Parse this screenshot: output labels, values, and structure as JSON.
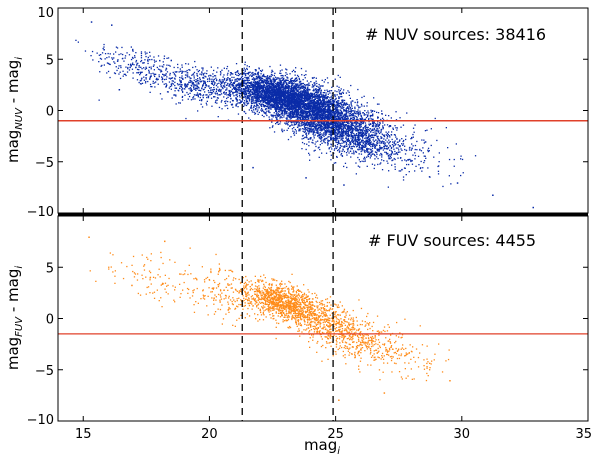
{
  "chart_data": [
    {
      "type": "scatter",
      "panel": "top",
      "annotation": "# NUV sources: 38416",
      "ylabel_main": "mag",
      "ylabel_sub": "NUV",
      "ylabel_mid": " - mag",
      "ylabel_sub2": "i",
      "xlim": [
        14,
        35
      ],
      "ylim": [
        -10,
        10
      ],
      "yticks": [
        -10,
        -5,
        0,
        5,
        10
      ],
      "ytick_labels": [
        "−10",
        "−5",
        "0",
        "5",
        "10"
      ],
      "hline_y": -1.0,
      "vlines_x": [
        21.3,
        24.9
      ],
      "point_color": "#0a2ca8",
      "hline_color": "#e0402a",
      "cloud": {
        "centers": [
          [
            17.0,
            4.5
          ],
          [
            19.5,
            2.5
          ],
          [
            22.3,
            1.8
          ],
          [
            23.5,
            0.8
          ],
          [
            24.5,
            -0.5
          ],
          [
            25.5,
            -1.8
          ],
          [
            26.5,
            -2.8
          ],
          [
            28.0,
            -4.0
          ]
        ],
        "point_counts": [
          200,
          500,
          1800,
          1800,
          1500,
          800,
          400,
          120
        ],
        "sx": [
          0.9,
          0.9,
          0.8,
          0.8,
          0.8,
          0.8,
          0.8,
          1.0
        ],
        "sy": [
          1.0,
          0.9,
          0.9,
          1.1,
          1.3,
          1.3,
          1.2,
          1.2
        ],
        "outliers": [
          [
            15.3,
            8.7
          ],
          [
            16.1,
            8.4
          ],
          [
            15.8,
            6.0
          ],
          [
            16.4,
            2.1
          ],
          [
            21.7,
            -5.5
          ],
          [
            23.8,
            -6.5
          ],
          [
            29.8,
            -7.0
          ],
          [
            31.2,
            -8.2
          ],
          [
            32.8,
            -9.4
          ],
          [
            25.3,
            -7.2
          ]
        ]
      }
    },
    {
      "type": "scatter",
      "panel": "bottom",
      "annotation": "# FUV sources: 4455",
      "ylabel_main": "mag",
      "ylabel_sub": "FUV",
      "ylabel_mid": " - mag",
      "ylabel_sub2": "i",
      "xlabel_main": "mag",
      "xlabel_sub": "i",
      "xlim": [
        14,
        35
      ],
      "ylim": [
        -10,
        10
      ],
      "xticks": [
        15,
        20,
        25,
        30,
        35
      ],
      "xtick_labels": [
        "15",
        "20",
        "25",
        "30",
        "35"
      ],
      "yticks": [
        -10,
        -5,
        0,
        5
      ],
      "ytick_labels": [
        "−10",
        "−5",
        "0",
        "5"
      ],
      "hline_y": -1.5,
      "vlines_x": [
        21.3,
        24.9
      ],
      "point_color": "#ff8c1a",
      "hline_color": "#e0402a",
      "cloud": {
        "centers": [
          [
            17.5,
            4.0
          ],
          [
            20.5,
            2.5
          ],
          [
            22.8,
            1.8
          ],
          [
            24.2,
            0.2
          ],
          [
            25.8,
            -2.0
          ],
          [
            27.5,
            -3.5
          ]
        ],
        "point_counts": [
          80,
          200,
          900,
          500,
          350,
          120
        ],
        "sx": [
          1.0,
          1.0,
          0.7,
          0.8,
          0.9,
          0.9
        ],
        "sy": [
          1.2,
          1.2,
          0.8,
          1.0,
          1.1,
          1.1
        ],
        "outliers": [
          [
            15.2,
            8.0
          ],
          [
            18.2,
            7.6
          ],
          [
            16.9,
            3.3
          ],
          [
            25.1,
            -7.9
          ],
          [
            26.9,
            -7.2
          ],
          [
            29.5,
            -6.0
          ]
        ]
      }
    }
  ]
}
